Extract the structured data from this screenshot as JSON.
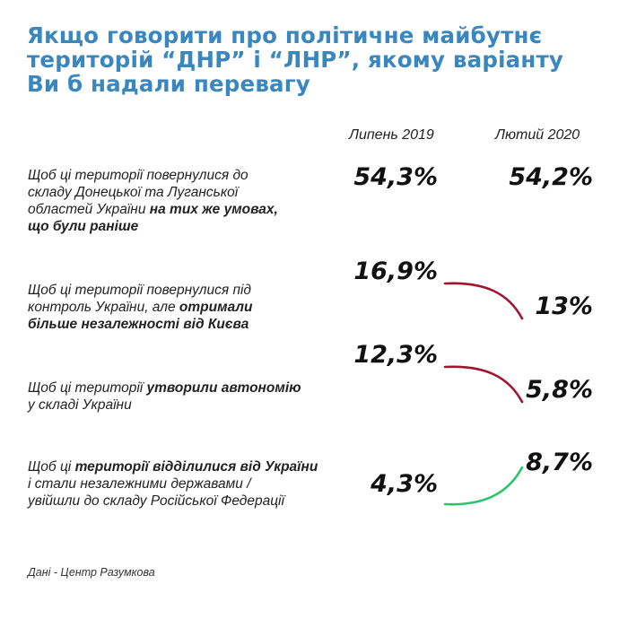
{
  "title_lines": [
    "Якщо говорити про політичне майбутнє",
    "територій “ДНР” і “ЛНР”, якому варіанту",
    "Ви б надали перевагу"
  ],
  "source": "Дані - Центр Разумкова",
  "colors": {
    "title": "#3a87c0",
    "decrease": "#a3122f",
    "increase": "#2dc26b",
    "text": "#1a1a1a"
  },
  "chart_data": {
    "type": "slope",
    "title": "Якщо говорити про політичне майбутнє територій “ДНР” і “ЛНР”, якому варіанту Ви б надали перевагу",
    "columns": [
      "Липень 2019",
      "Лютий 2020"
    ],
    "unit": "%",
    "rows": [
      {
        "label_lines": [
          [
            {
              "t": "Щоб ці території повернулися до",
              "b": false
            }
          ],
          [
            {
              "t": "складу Донецької та Луганської",
              "b": false
            }
          ],
          [
            {
              "t": "областей України ",
              "b": false
            },
            {
              "t": "на тих же умовах,",
              "b": true
            }
          ],
          [
            {
              "t": "що були раніше",
              "b": true
            }
          ]
        ],
        "values": [
          54.3,
          54.2
        ],
        "labels": [
          "54,3%",
          "54,2%"
        ],
        "trend": "none"
      },
      {
        "label_lines": [
          [
            {
              "t": "Щоб ці території повернулися під",
              "b": false
            }
          ],
          [
            {
              "t": "контроль України, але ",
              "b": false
            },
            {
              "t": "отримали",
              "b": true
            }
          ],
          [
            {
              "t": "більше незалежності від Києва",
              "b": true
            }
          ]
        ],
        "values": [
          16.9,
          13
        ],
        "labels": [
          "16,9%",
          "13%"
        ],
        "trend": "decrease"
      },
      {
        "label_lines": [
          [
            {
              "t": "Щоб ці території ",
              "b": false
            },
            {
              "t": "утворили автономію",
              "b": true
            }
          ],
          [
            {
              "t": "у складі України",
              "b": false
            }
          ]
        ],
        "values": [
          12.3,
          5.8
        ],
        "labels": [
          "12,3%",
          "5,8%"
        ],
        "trend": "decrease"
      },
      {
        "label_lines": [
          [
            {
              "t": "Щоб ці ",
              "b": false
            },
            {
              "t": "території відділилися від України",
              "b": true
            }
          ],
          [
            {
              "t": "і стали незалежними державами /",
              "b": false
            }
          ],
          [
            {
              "t": "увійшли до складу Російської Федерації",
              "b": false
            }
          ]
        ],
        "values": [
          4.3,
          8.7
        ],
        "labels": [
          "4,3%",
          "8,7%"
        ],
        "trend": "increase"
      }
    ]
  }
}
